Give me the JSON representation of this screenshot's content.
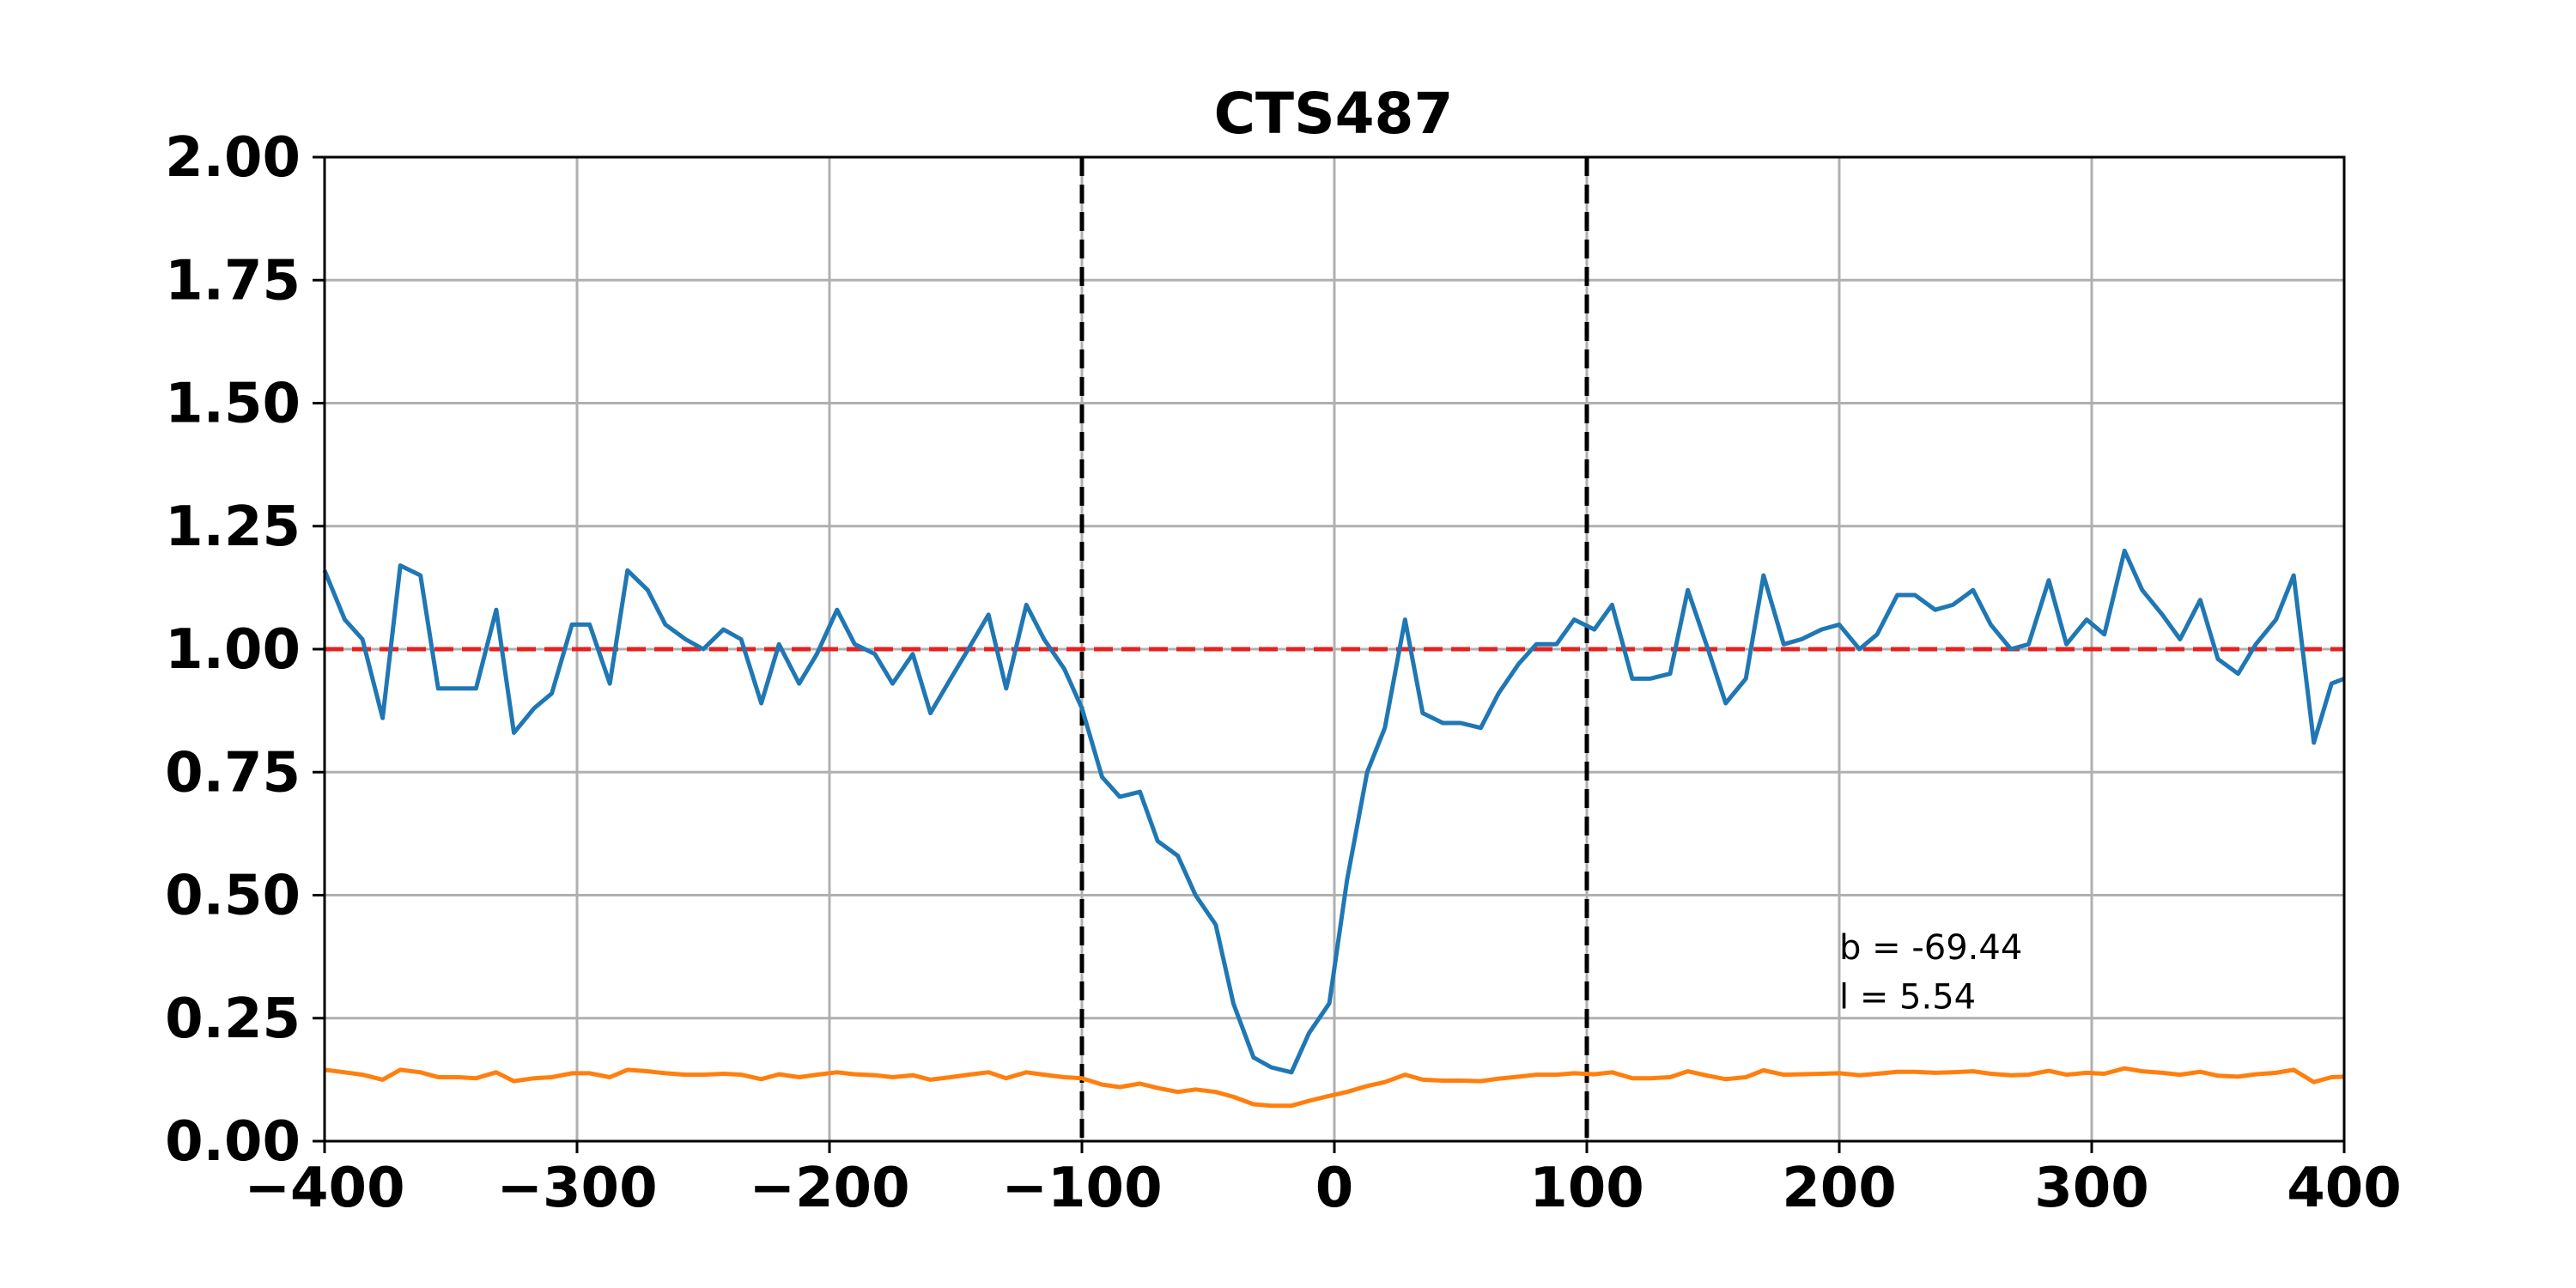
{
  "chart_data": {
    "type": "line",
    "title": "CTS487",
    "xlabel": "",
    "ylabel": "",
    "xlim": [
      -400,
      400
    ],
    "ylim": [
      0,
      2
    ],
    "grid": true,
    "xticks": [
      "−400",
      "−300",
      "−200",
      "−100",
      "0",
      "100",
      "200",
      "300",
      "400"
    ],
    "yticks": [
      "0.00",
      "0.25",
      "0.50",
      "0.75",
      "1.00",
      "1.25",
      "1.50",
      "1.75",
      "2.00"
    ],
    "reference_lines": {
      "horizontal": {
        "y": 1.0,
        "color": "#e8201e",
        "style": "dashed"
      },
      "vertical": [
        {
          "x": -100,
          "color": "#000000",
          "style": "dashed"
        },
        {
          "x": 100,
          "color": "#000000",
          "style": "dashed"
        }
      ]
    },
    "annotations": [
      {
        "text": "b = -69.44",
        "x": 200,
        "y": 0.37
      },
      {
        "text": "l = 5.54",
        "x": 200,
        "y": 0.27
      }
    ],
    "series": [
      {
        "color": "#1f77b4",
        "x": [
          -400,
          -392,
          -385,
          -377,
          -370,
          -362,
          -355,
          -347,
          -340,
          -332,
          -325,
          -317,
          -310,
          -302,
          -295,
          -287,
          -280,
          -272,
          -265,
          -257,
          -250,
          -242,
          -235,
          -227,
          -220,
          -212,
          -205,
          -197,
          -190,
          -182,
          -175,
          -167,
          -160,
          -152,
          -145,
          -137,
          -130,
          -122,
          -115,
          -107,
          -100,
          -92,
          -85,
          -77,
          -70,
          -62,
          -55,
          -47,
          -40,
          -32,
          -25,
          -17,
          -10,
          -2,
          5,
          13,
          20,
          28,
          35,
          43,
          50,
          58,
          65,
          73,
          80,
          88,
          95,
          103,
          110,
          118,
          125,
          133,
          140,
          148,
          155,
          163,
          170,
          178,
          185,
          193,
          200,
          208,
          215,
          223,
          230,
          238,
          245,
          253,
          260,
          268,
          275,
          283,
          290,
          298,
          305,
          313,
          320,
          328,
          335,
          343,
          350,
          358,
          365,
          373,
          380,
          388,
          395,
          400
        ],
        "y": [
          1.16,
          1.06,
          1.02,
          0.86,
          1.17,
          1.15,
          0.92,
          0.92,
          0.92,
          1.08,
          0.83,
          0.88,
          0.91,
          1.05,
          1.05,
          0.93,
          1.16,
          1.12,
          1.05,
          1.02,
          1.0,
          1.04,
          1.02,
          0.89,
          1.01,
          0.93,
          0.99,
          1.08,
          1.01,
          0.99,
          0.93,
          0.99,
          0.87,
          0.94,
          1.0,
          1.07,
          0.92,
          1.09,
          1.02,
          0.96,
          0.88,
          0.74,
          0.7,
          0.71,
          0.61,
          0.58,
          0.5,
          0.44,
          0.28,
          0.17,
          0.15,
          0.14,
          0.22,
          0.28,
          0.53,
          0.75,
          0.84,
          1.06,
          0.87,
          0.85,
          0.85,
          0.84,
          0.91,
          0.97,
          1.01,
          1.01,
          1.06,
          1.04,
          1.09,
          0.94,
          0.94,
          0.95,
          1.12,
          1.0,
          0.89,
          0.94,
          1.15,
          1.01,
          1.02,
          1.04,
          1.05,
          1.0,
          1.03,
          1.11,
          1.11,
          1.08,
          1.09,
          1.12,
          1.05,
          1.0,
          1.01,
          1.14,
          1.01,
          1.06,
          1.03,
          1.2,
          1.12,
          1.07,
          1.02,
          1.1,
          0.98,
          0.95,
          1.01,
          1.06,
          1.15,
          0.81,
          0.93,
          0.94
        ]
      },
      {
        "color": "#ff7f0e",
        "x": [
          -400,
          -392,
          -385,
          -377,
          -370,
          -362,
          -355,
          -347,
          -340,
          -332,
          -325,
          -317,
          -310,
          -302,
          -295,
          -287,
          -280,
          -272,
          -265,
          -257,
          -250,
          -242,
          -235,
          -227,
          -220,
          -212,
          -205,
          -197,
          -190,
          -182,
          -175,
          -167,
          -160,
          -152,
          -145,
          -137,
          -130,
          -122,
          -115,
          -107,
          -100,
          -92,
          -85,
          -77,
          -70,
          -62,
          -55,
          -47,
          -40,
          -32,
          -25,
          -17,
          -10,
          -2,
          5,
          13,
          20,
          28,
          35,
          43,
          50,
          58,
          65,
          73,
          80,
          88,
          95,
          103,
          110,
          118,
          125,
          133,
          140,
          148,
          155,
          163,
          170,
          178,
          185,
          193,
          200,
          208,
          215,
          223,
          230,
          238,
          245,
          253,
          260,
          268,
          275,
          283,
          290,
          298,
          305,
          313,
          320,
          328,
          335,
          343,
          350,
          358,
          365,
          373,
          380,
          388,
          395,
          400
        ],
        "y": [
          0.145,
          0.14,
          0.135,
          0.125,
          0.145,
          0.14,
          0.13,
          0.13,
          0.128,
          0.14,
          0.122,
          0.128,
          0.13,
          0.138,
          0.138,
          0.13,
          0.145,
          0.142,
          0.138,
          0.135,
          0.135,
          0.137,
          0.135,
          0.126,
          0.136,
          0.13,
          0.135,
          0.14,
          0.136,
          0.134,
          0.13,
          0.134,
          0.125,
          0.13,
          0.135,
          0.14,
          0.128,
          0.14,
          0.135,
          0.13,
          0.128,
          0.115,
          0.11,
          0.117,
          0.108,
          0.1,
          0.105,
          0.1,
          0.09,
          0.075,
          0.072,
          0.072,
          0.082,
          0.092,
          0.1,
          0.112,
          0.12,
          0.135,
          0.125,
          0.123,
          0.123,
          0.122,
          0.127,
          0.131,
          0.135,
          0.135,
          0.138,
          0.136,
          0.14,
          0.128,
          0.128,
          0.13,
          0.142,
          0.133,
          0.126,
          0.13,
          0.144,
          0.135,
          0.136,
          0.137,
          0.138,
          0.134,
          0.137,
          0.141,
          0.141,
          0.139,
          0.14,
          0.142,
          0.137,
          0.134,
          0.135,
          0.143,
          0.135,
          0.139,
          0.137,
          0.148,
          0.142,
          0.139,
          0.135,
          0.141,
          0.133,
          0.131,
          0.136,
          0.139,
          0.145,
          0.12,
          0.13,
          0.131
        ]
      }
    ]
  }
}
